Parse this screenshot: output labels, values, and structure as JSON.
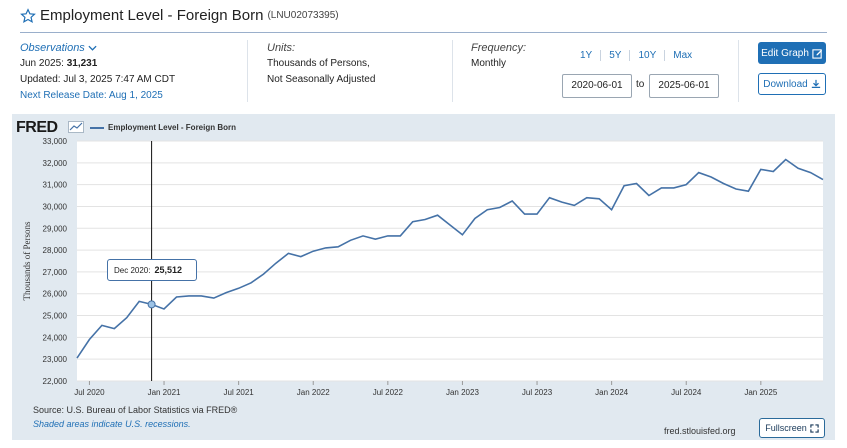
{
  "header": {
    "title": "Employment Level - Foreign Born",
    "series_id": "(LNU02073395)"
  },
  "observations": {
    "link_label": "Observations",
    "latest_prefix": "Jun 2025:",
    "latest_value": "31,231",
    "updated": "Updated: Jul 3, 2025 7:47 AM CDT",
    "next_release": "Next Release Date: Aug 1, 2025"
  },
  "units": {
    "label": "Units:",
    "line1": "Thousands of Persons,",
    "line2": "Not Seasonally Adjusted"
  },
  "frequency": {
    "label": "Frequency:",
    "value": "Monthly"
  },
  "range": {
    "links": [
      "1Y",
      "5Y",
      "10Y",
      "Max"
    ],
    "start": "2020-06-01",
    "to_label": "to",
    "end": "2025-06-01"
  },
  "buttons": {
    "edit_graph": "Edit Graph",
    "download": "Download",
    "fullscreen": "Fullscreen"
  },
  "chart_header": {
    "logo": "FRED",
    "legend": "Employment Level - Foreign Born"
  },
  "footer": {
    "source": "Source: U.S. Bureau of Labor Statistics via FRED®",
    "recession_note": "Shaded areas indicate U.S. recessions.",
    "url": "fred.stlouisfed.org"
  },
  "tooltip": {
    "label": "Dec 2020:",
    "value": "25,512"
  },
  "colors": {
    "line": "#4572a7",
    "accent": "#1f6fb5",
    "plot_bg": "#e1e9f0"
  },
  "chart_data": {
    "type": "line",
    "title": "Employment Level - Foreign Born",
    "ylabel": "Thousands of Persons",
    "ylim": [
      22000,
      33000
    ],
    "yticks": [
      "22,000",
      "23,000",
      "24,000",
      "25,000",
      "26,000",
      "27,000",
      "28,000",
      "29,000",
      "30,000",
      "31,000",
      "32,000",
      "33,000"
    ],
    "xtick_labels": [
      "Jul 2020",
      "Jan 2021",
      "Jul 2021",
      "Jan 2022",
      "Jul 2022",
      "Jan 2023",
      "Jul 2023",
      "Jan 2024",
      "Jul 2024",
      "Jan 2025"
    ],
    "grid": true,
    "legend_position": "top-left",
    "series": [
      {
        "name": "Employment Level - Foreign Born",
        "x": [
          "2020-06",
          "2020-07",
          "2020-08",
          "2020-09",
          "2020-10",
          "2020-11",
          "2020-12",
          "2021-01",
          "2021-02",
          "2021-03",
          "2021-04",
          "2021-05",
          "2021-06",
          "2021-07",
          "2021-08",
          "2021-09",
          "2021-10",
          "2021-11",
          "2021-12",
          "2022-01",
          "2022-02",
          "2022-03",
          "2022-04",
          "2022-05",
          "2022-06",
          "2022-07",
          "2022-08",
          "2022-09",
          "2022-10",
          "2022-11",
          "2022-12",
          "2023-01",
          "2023-02",
          "2023-03",
          "2023-04",
          "2023-05",
          "2023-06",
          "2023-07",
          "2023-08",
          "2023-09",
          "2023-10",
          "2023-11",
          "2023-12",
          "2024-01",
          "2024-02",
          "2024-03",
          "2024-04",
          "2024-05",
          "2024-06",
          "2024-07",
          "2024-08",
          "2024-09",
          "2024-10",
          "2024-11",
          "2024-12",
          "2025-01",
          "2025-02",
          "2025-03",
          "2025-04",
          "2025-05",
          "2025-06"
        ],
        "values": [
          23050,
          23900,
          24550,
          24400,
          24900,
          25650,
          25512,
          25300,
          25850,
          25900,
          25900,
          25800,
          26050,
          26250,
          26500,
          26900,
          27400,
          27850,
          27700,
          27950,
          28100,
          28150,
          28450,
          28650,
          28500,
          28650,
          28650,
          29300,
          29400,
          29600,
          29150,
          28700,
          29450,
          29850,
          29950,
          30250,
          29650,
          29650,
          30400,
          30200,
          30050,
          30400,
          30350,
          29850,
          30950,
          31050,
          30500,
          30850,
          30850,
          31000,
          31550,
          31350,
          31050,
          30800,
          30700,
          31700,
          31600,
          32150,
          31750,
          31550,
          31231
        ]
      }
    ]
  }
}
